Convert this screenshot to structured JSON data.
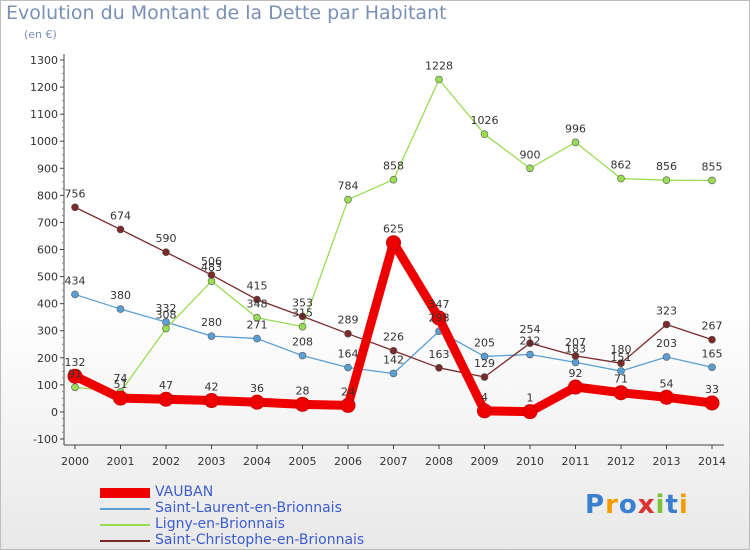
{
  "chart_data": {
    "type": "line",
    "title": "Evolution du Montant de la Dette par Habitant",
    "subtitle": "(en €)",
    "x": [
      "2000",
      "2001",
      "2002",
      "2003",
      "2004",
      "2005",
      "2006",
      "2007",
      "2008",
      "2009",
      "2010",
      "2011",
      "2012",
      "2013",
      "2014"
    ],
    "y_ticks": [
      "1300",
      "1200",
      "1100",
      "1000",
      "900",
      "800",
      "700",
      "600",
      "500",
      "400",
      "300",
      "200",
      "100",
      "0",
      "-100"
    ],
    "ylim": [
      -100,
      1300
    ],
    "grid": false,
    "legend_position": "bottom-left",
    "series": [
      {
        "name": "VAUBAN",
        "color": "#ee0000",
        "values": [
          132,
          51,
          47,
          42,
          36,
          28,
          24,
          625,
          347,
          4,
          1,
          92,
          71,
          54,
          33
        ],
        "labels": [
          "132",
          "51",
          "47",
          "42",
          "36",
          "28",
          "24",
          "625",
          "347",
          "4",
          "1",
          "92",
          "71",
          "54",
          "33"
        ]
      },
      {
        "name": "Saint-Laurent-en-Brionnais",
        "color": "#5a9fd4",
        "values": [
          434,
          380,
          332,
          280,
          271,
          208,
          164,
          142,
          298,
          205,
          212,
          183,
          151,
          203,
          165
        ],
        "labels": [
          "434",
          "380",
          "332",
          "280",
          "271",
          "208",
          "164",
          "142",
          "298",
          "205",
          "212",
          "183",
          "151",
          "203",
          "165"
        ]
      },
      {
        "name": "Ligny-en-Brionnais",
        "color": "#99dd55",
        "values": [
          91,
          74,
          308,
          483,
          348,
          315,
          784,
          858,
          1228,
          1026,
          900,
          996,
          862,
          856,
          855
        ],
        "labels": [
          "91",
          "74",
          "308",
          "483",
          "348",
          "315",
          "784",
          "858",
          "1228",
          "1026",
          "900",
          "996",
          "862",
          "856",
          "855"
        ]
      },
      {
        "name": "Saint-Christophe-en-Brionnais",
        "color": "#7a2a2a",
        "values": [
          756,
          674,
          590,
          506,
          415,
          353,
          289,
          226,
          163,
          129,
          254,
          207,
          180,
          323,
          267
        ],
        "labels": [
          "756",
          "674",
          "590",
          "506",
          "415",
          "353",
          "289",
          "226",
          "163",
          "129",
          "254",
          "207",
          "180",
          "323",
          "267"
        ]
      }
    ]
  },
  "logo": {
    "text": "Proxiti",
    "colors": [
      "#3a7fd0",
      "#f39c00",
      "#3a7fd0",
      "#e03030",
      "#7dc33a",
      "#3a7fd0",
      "#f39c00"
    ]
  }
}
